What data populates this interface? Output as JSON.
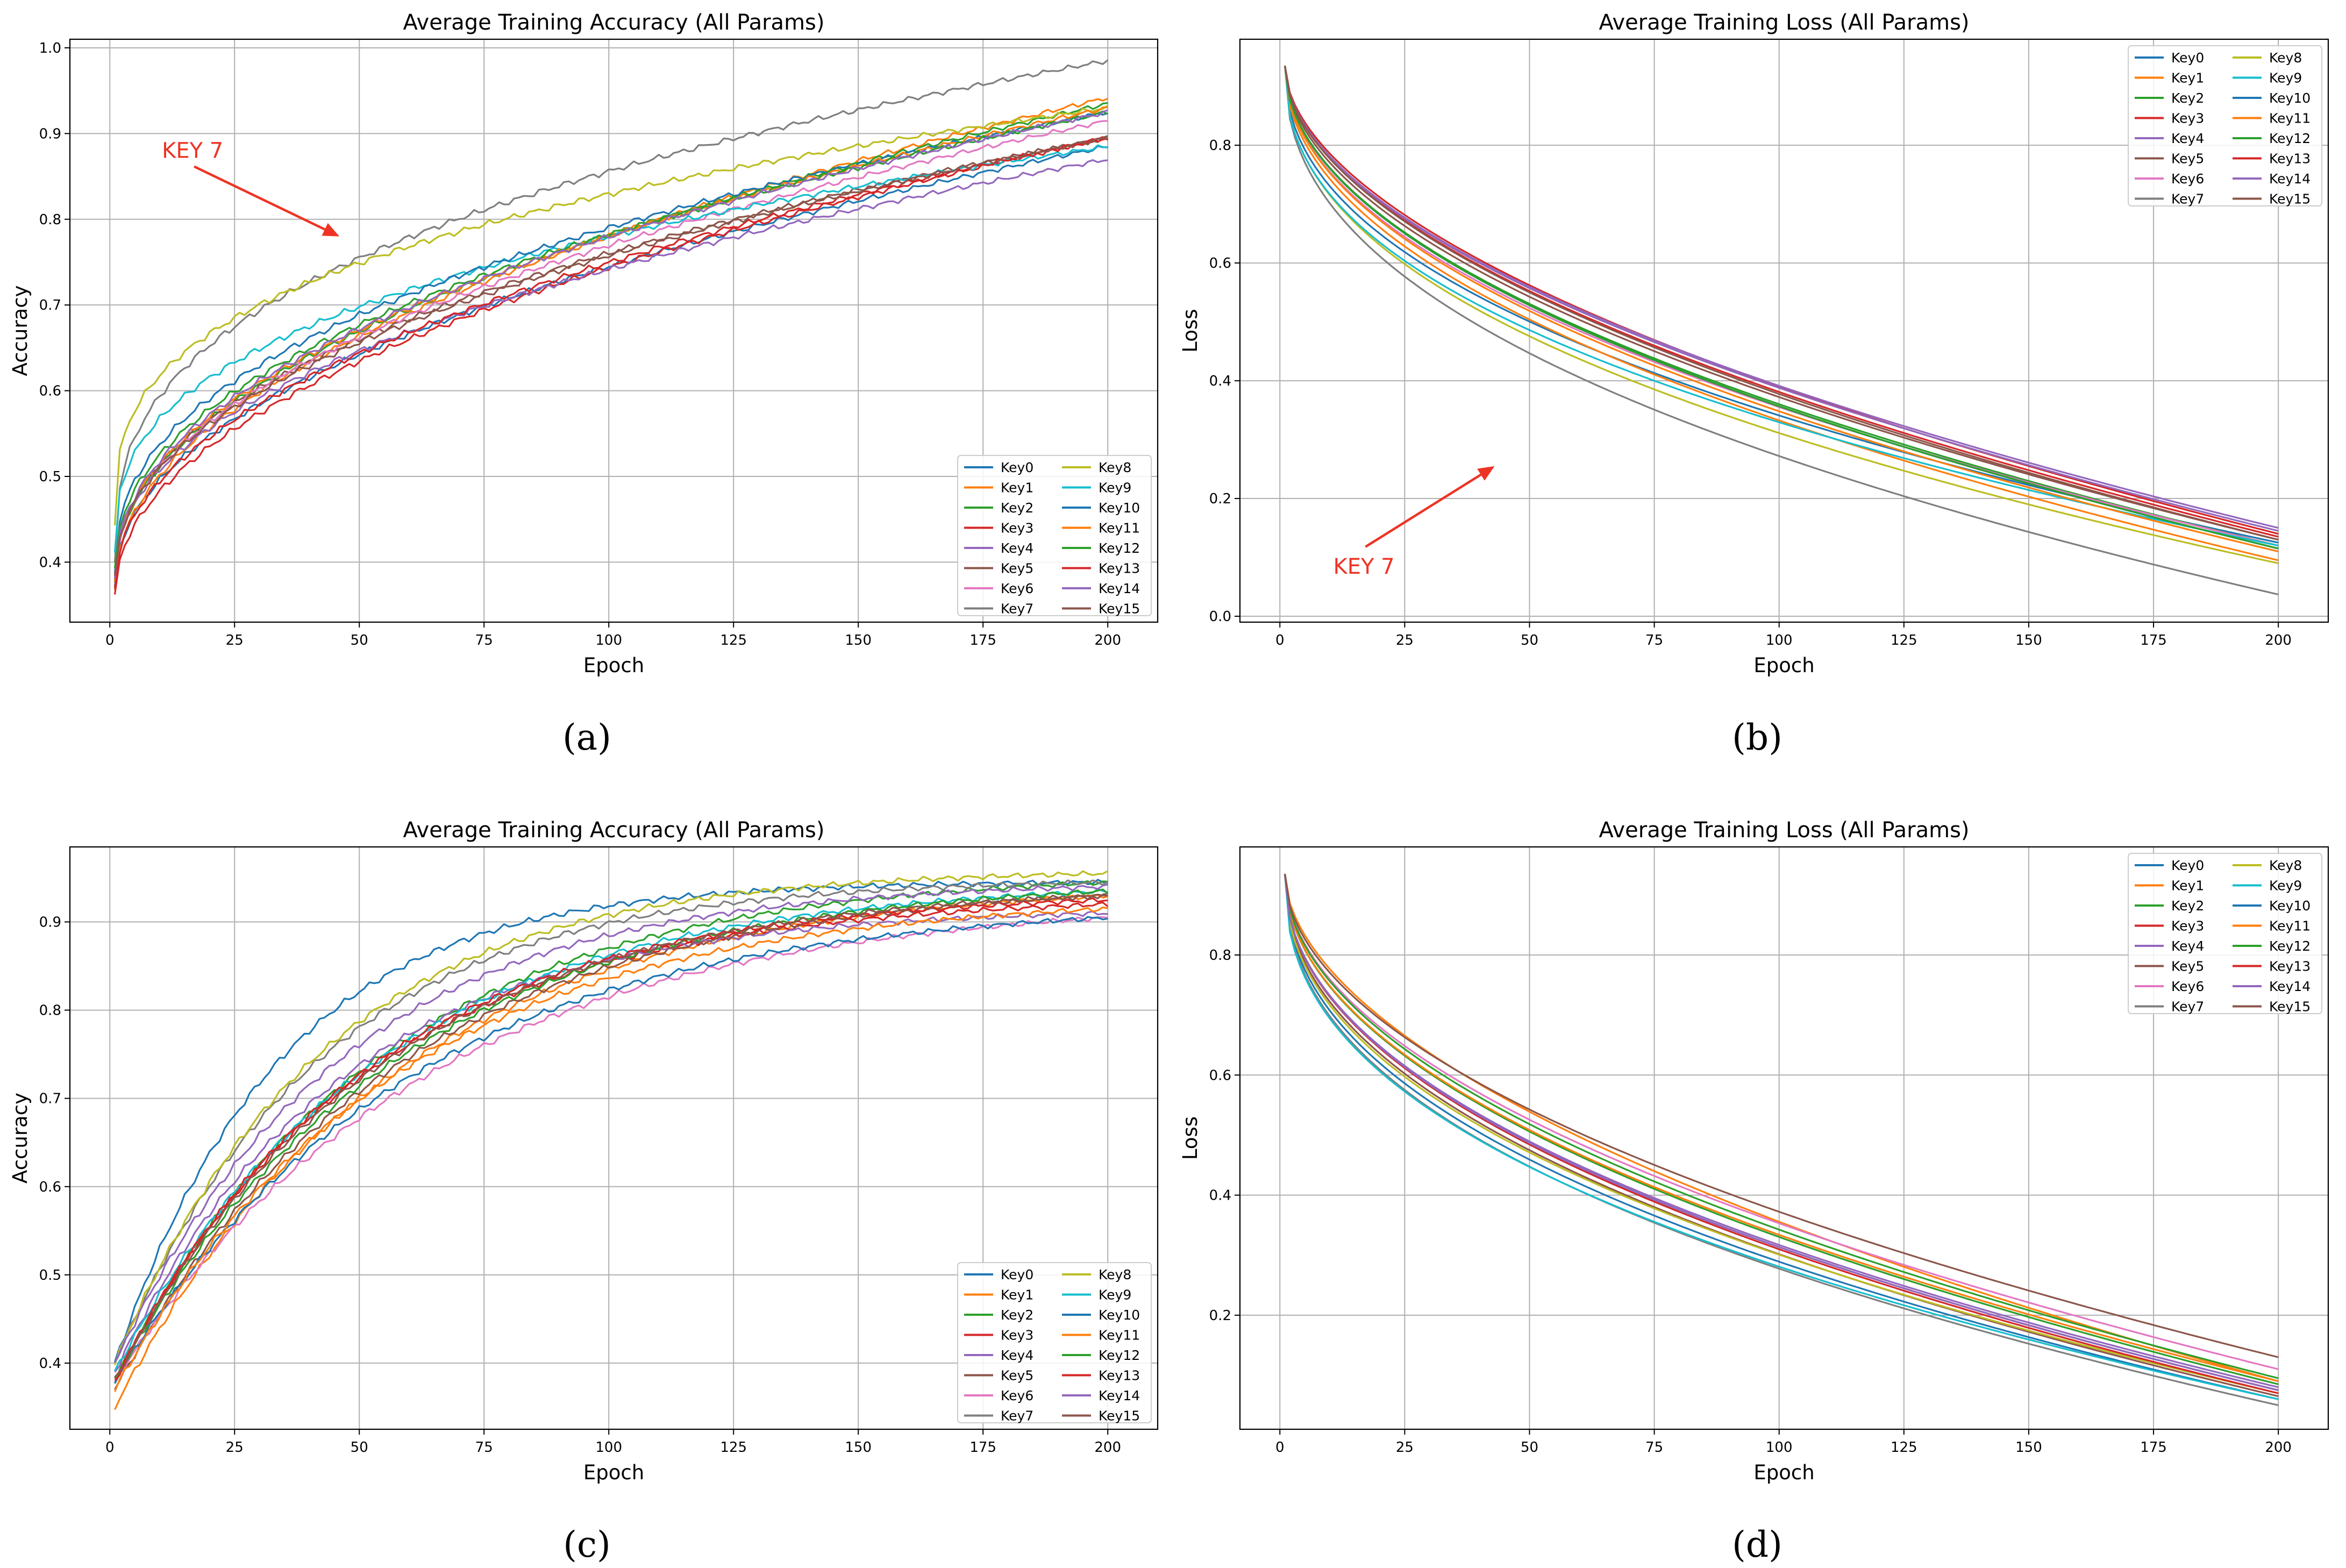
{
  "annotation_color": "#ee3324",
  "key_colors": [
    "#1f77b4",
    "#ff7f0e",
    "#2ca02c",
    "#d62728",
    "#9467bd",
    "#8c564b",
    "#e377c2",
    "#7f7f7f",
    "#bcbd22",
    "#17becf",
    "#1f77b4",
    "#ff7f0e",
    "#2ca02c",
    "#d62728",
    "#9467bd",
    "#8c564b"
  ],
  "chart_data": [
    {
      "id": "a",
      "caption": "(a)",
      "type": "line",
      "title": "Average Training Accuracy (All Params)",
      "xlabel": "Epoch",
      "ylabel": "Accuracy",
      "xlim": [
        -8,
        210
      ],
      "ylim": [
        0.33,
        1.01
      ],
      "xticks": [
        0,
        25,
        50,
        75,
        100,
        125,
        150,
        175,
        200
      ],
      "yticks": [
        0.4,
        0.5,
        0.6,
        0.7,
        0.8,
        0.9,
        1.0
      ],
      "ytick_labels": [
        "0.4",
        "0.5",
        "0.6",
        "0.7",
        "0.8",
        "0.9",
        "1.0"
      ],
      "grid": true,
      "legend_position": "lower-right",
      "legend_columns": 2,
      "annotation": {
        "text": "KEY 7",
        "points_to": [
          46,
          0.78
        ]
      },
      "series": [
        {
          "name": "Key0",
          "start": 0.37,
          "end": 0.885,
          "k": 1.2,
          "shape": "power"
        },
        {
          "name": "Key1",
          "start": 0.37,
          "end": 0.942,
          "k": 1.1,
          "shape": "power"
        },
        {
          "name": "Key2",
          "start": 0.38,
          "end": 0.935,
          "k": 1.15,
          "shape": "power"
        },
        {
          "name": "Key3",
          "start": 0.36,
          "end": 0.895,
          "k": 1.1,
          "shape": "power"
        },
        {
          "name": "Key4",
          "start": 0.38,
          "end": 0.87,
          "k": 1.3,
          "shape": "power"
        },
        {
          "name": "Key5",
          "start": 0.38,
          "end": 0.895,
          "k": 1.3,
          "shape": "power"
        },
        {
          "name": "Key6",
          "start": 0.38,
          "end": 0.915,
          "k": 1.2,
          "shape": "power"
        },
        {
          "name": "Key7",
          "start": 0.4,
          "end": 0.985,
          "k": 1.8,
          "shape": "power"
        },
        {
          "name": "Key8",
          "start": 0.445,
          "end": 0.93,
          "k": 2.0,
          "shape": "power"
        },
        {
          "name": "Key9",
          "start": 0.41,
          "end": 0.885,
          "k": 1.8,
          "shape": "power"
        },
        {
          "name": "Key10",
          "start": 0.39,
          "end": 0.925,
          "k": 1.4,
          "shape": "power"
        },
        {
          "name": "Key11",
          "start": 0.38,
          "end": 0.93,
          "k": 1.2,
          "shape": "power"
        },
        {
          "name": "Key12",
          "start": 0.39,
          "end": 0.925,
          "k": 1.25,
          "shape": "power"
        },
        {
          "name": "Key13",
          "start": 0.37,
          "end": 0.895,
          "k": 1.15,
          "shape": "power"
        },
        {
          "name": "Key14",
          "start": 0.38,
          "end": 0.925,
          "k": 1.25,
          "shape": "power"
        },
        {
          "name": "Key15",
          "start": 0.38,
          "end": 0.895,
          "k": 1.25,
          "shape": "power"
        }
      ]
    },
    {
      "id": "b",
      "caption": "(b)",
      "type": "line",
      "title": "Average Training Loss (All Params)",
      "xlabel": "Epoch",
      "ylabel": "Loss",
      "xlim": [
        -8,
        210
      ],
      "ylim": [
        -0.01,
        0.98
      ],
      "xticks": [
        0,
        25,
        50,
        75,
        100,
        125,
        150,
        175,
        200
      ],
      "yticks": [
        0.0,
        0.2,
        0.4,
        0.6,
        0.8
      ],
      "ytick_labels": [
        "0.0",
        "0.2",
        "0.4",
        "0.6",
        "0.8"
      ],
      "grid": true,
      "legend_position": "upper-right",
      "legend_columns": 2,
      "annotation": {
        "text": "KEY 7",
        "points_to": [
          43,
          0.255
        ]
      },
      "series": [
        {
          "name": "Key0",
          "start": 0.935,
          "end": 0.125,
          "k": 1.25,
          "shape": "power"
        },
        {
          "name": "Key1",
          "start": 0.935,
          "end": 0.095,
          "k": 1.1,
          "shape": "power"
        },
        {
          "name": "Key2",
          "start": 0.935,
          "end": 0.12,
          "k": 1.0,
          "shape": "power"
        },
        {
          "name": "Key3",
          "start": 0.935,
          "end": 0.14,
          "k": 0.85,
          "shape": "power"
        },
        {
          "name": "Key4",
          "start": 0.935,
          "end": 0.15,
          "k": 0.9,
          "shape": "power"
        },
        {
          "name": "Key5",
          "start": 0.935,
          "end": 0.13,
          "k": 0.95,
          "shape": "power"
        },
        {
          "name": "Key6",
          "start": 0.935,
          "end": 0.12,
          "k": 1.05,
          "shape": "power"
        },
        {
          "name": "Key7",
          "start": 0.935,
          "end": 0.037,
          "k": 1.3,
          "shape": "power"
        },
        {
          "name": "Key8",
          "start": 0.935,
          "end": 0.09,
          "k": 1.3,
          "shape": "power"
        },
        {
          "name": "Key9",
          "start": 0.935,
          "end": 0.12,
          "k": 1.35,
          "shape": "power"
        },
        {
          "name": "Key10",
          "start": 0.935,
          "end": 0.115,
          "k": 1.0,
          "shape": "power"
        },
        {
          "name": "Key11",
          "start": 0.935,
          "end": 0.11,
          "k": 1.05,
          "shape": "power"
        },
        {
          "name": "Key12",
          "start": 0.935,
          "end": 0.115,
          "k": 1.0,
          "shape": "power"
        },
        {
          "name": "Key13",
          "start": 0.935,
          "end": 0.135,
          "k": 0.9,
          "shape": "power"
        },
        {
          "name": "Key14",
          "start": 0.935,
          "end": 0.145,
          "k": 0.9,
          "shape": "power"
        },
        {
          "name": "Key15",
          "start": 0.935,
          "end": 0.13,
          "k": 0.9,
          "shape": "power"
        }
      ]
    },
    {
      "id": "c",
      "caption": "(c)",
      "type": "line",
      "title": "Average Training Accuracy (All Params)",
      "xlabel": "Epoch",
      "ylabel": "Accuracy",
      "xlim": [
        -8,
        210
      ],
      "ylim": [
        0.325,
        0.985
      ],
      "xticks": [
        0,
        25,
        50,
        75,
        100,
        125,
        150,
        175,
        200
      ],
      "yticks": [
        0.4,
        0.5,
        0.6,
        0.7,
        0.8,
        0.9
      ],
      "ytick_labels": [
        "0.4",
        "0.5",
        "0.6",
        "0.7",
        "0.8",
        "0.9"
      ],
      "grid": true,
      "legend_position": "lower-right",
      "legend_columns": 2,
      "series": [
        {
          "name": "Key0",
          "start": 0.4,
          "end": 0.945,
          "k": 0.03,
          "shape": "exp"
        },
        {
          "name": "Key1",
          "start": 0.35,
          "end": 0.93,
          "k": 0.018,
          "shape": "exp"
        },
        {
          "name": "Key2",
          "start": 0.38,
          "end": 0.945,
          "k": 0.019,
          "shape": "exp"
        },
        {
          "name": "Key3",
          "start": 0.38,
          "end": 0.92,
          "k": 0.02,
          "shape": "exp"
        },
        {
          "name": "Key4",
          "start": 0.39,
          "end": 0.91,
          "k": 0.022,
          "shape": "exp"
        },
        {
          "name": "Key5",
          "start": 0.37,
          "end": 0.93,
          "k": 0.018,
          "shape": "exp"
        },
        {
          "name": "Key6",
          "start": 0.38,
          "end": 0.905,
          "k": 0.016,
          "shape": "exp"
        },
        {
          "name": "Key7",
          "start": 0.4,
          "end": 0.945,
          "k": 0.024,
          "shape": "exp"
        },
        {
          "name": "Key8",
          "start": 0.4,
          "end": 0.955,
          "k": 0.024,
          "shape": "exp"
        },
        {
          "name": "Key9",
          "start": 0.39,
          "end": 0.935,
          "k": 0.019,
          "shape": "exp"
        },
        {
          "name": "Key10",
          "start": 0.38,
          "end": 0.905,
          "k": 0.017,
          "shape": "exp"
        },
        {
          "name": "Key11",
          "start": 0.37,
          "end": 0.915,
          "k": 0.018,
          "shape": "exp"
        },
        {
          "name": "Key12",
          "start": 0.38,
          "end": 0.935,
          "k": 0.018,
          "shape": "exp"
        },
        {
          "name": "Key13",
          "start": 0.38,
          "end": 0.925,
          "k": 0.02,
          "shape": "exp"
        },
        {
          "name": "Key14",
          "start": 0.4,
          "end": 0.94,
          "k": 0.022,
          "shape": "exp"
        },
        {
          "name": "Key15",
          "start": 0.38,
          "end": 0.93,
          "k": 0.019,
          "shape": "exp"
        }
      ]
    },
    {
      "id": "d",
      "caption": "(d)",
      "type": "line",
      "title": "Average Training Loss (All Params)",
      "xlabel": "Epoch",
      "ylabel": "Loss",
      "xlim": [
        -8,
        210
      ],
      "ylim": [
        0.01,
        0.98
      ],
      "xticks": [
        0,
        25,
        50,
        75,
        100,
        125,
        150,
        175,
        200
      ],
      "yticks": [
        0.2,
        0.4,
        0.6,
        0.8
      ],
      "ytick_labels": [
        "0.2",
        "0.4",
        "0.6",
        "0.8"
      ],
      "grid": true,
      "legend_position": "upper-right",
      "legend_columns": 2,
      "series": [
        {
          "name": "Key0",
          "start": 0.935,
          "end": 0.06,
          "k": 1.3,
          "shape": "power"
        },
        {
          "name": "Key1",
          "start": 0.935,
          "end": 0.09,
          "k": 0.85,
          "shape": "power"
        },
        {
          "name": "Key2",
          "start": 0.935,
          "end": 0.085,
          "k": 1.05,
          "shape": "power"
        },
        {
          "name": "Key3",
          "start": 0.935,
          "end": 0.075,
          "k": 1.15,
          "shape": "power"
        },
        {
          "name": "Key4",
          "start": 0.935,
          "end": 0.08,
          "k": 1.15,
          "shape": "power"
        },
        {
          "name": "Key5",
          "start": 0.935,
          "end": 0.065,
          "k": 1.2,
          "shape": "power"
        },
        {
          "name": "Key6",
          "start": 0.935,
          "end": 0.11,
          "k": 1.0,
          "shape": "power"
        },
        {
          "name": "Key7",
          "start": 0.935,
          "end": 0.05,
          "k": 1.35,
          "shape": "power"
        },
        {
          "name": "Key8",
          "start": 0.935,
          "end": 0.07,
          "k": 1.25,
          "shape": "power"
        },
        {
          "name": "Key9",
          "start": 0.935,
          "end": 0.06,
          "k": 1.4,
          "shape": "power"
        },
        {
          "name": "Key10",
          "start": 0.935,
          "end": 0.075,
          "k": 1.15,
          "shape": "power"
        },
        {
          "name": "Key11",
          "start": 0.935,
          "end": 0.09,
          "k": 1.05,
          "shape": "power"
        },
        {
          "name": "Key12",
          "start": 0.935,
          "end": 0.095,
          "k": 1.0,
          "shape": "power"
        },
        {
          "name": "Key13",
          "start": 0.935,
          "end": 0.07,
          "k": 1.15,
          "shape": "power"
        },
        {
          "name": "Key14",
          "start": 0.935,
          "end": 0.075,
          "k": 1.15,
          "shape": "power"
        },
        {
          "name": "Key15",
          "start": 0.935,
          "end": 0.13,
          "k": 0.95,
          "shape": "power"
        }
      ]
    }
  ]
}
